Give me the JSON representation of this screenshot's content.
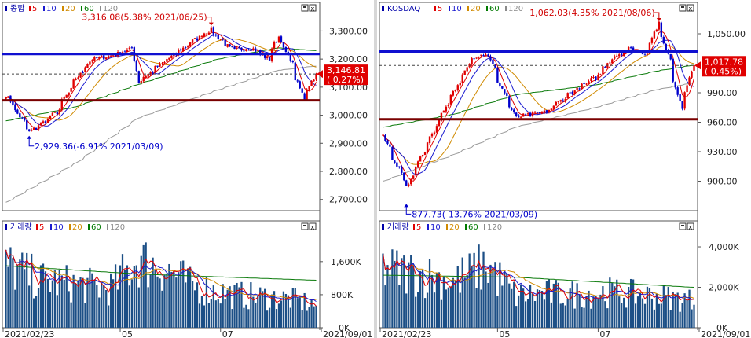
{
  "chart_data": [
    {
      "type": "candlestick",
      "panel": "price",
      "legend": {
        "name": "종합",
        "ma": [
          {
            "label": "5",
            "color": "#e00000"
          },
          {
            "label": "10",
            "color": "#1a1ad0"
          },
          {
            "label": "20",
            "color": "#d08a00"
          },
          {
            "label": "60",
            "color": "#007a00"
          },
          {
            "label": "120",
            "color": "#8a8a8a"
          }
        ]
      },
      "y_ticks": [
        "3,300.00",
        "3,200.00",
        "3,100.00",
        "3,000.00",
        "2,900.00",
        "2,800.00",
        "2,700.00"
      ],
      "ylim": [
        2660,
        3360
      ],
      "current": {
        "value_label": "3,146.81",
        "change_label": "( 0.27%)",
        "value": 3146.81
      },
      "annotations": [
        {
          "text": "3,316.08(5.38% 2021/06/25)",
          "value": 3316.08,
          "type": "high"
        },
        {
          "text": "2,929.36(-6.91% 2021/03/09)",
          "value": 2929.36,
          "type": "low"
        }
      ],
      "h_lines": [
        {
          "value": 3218,
          "color": "#1010d0"
        },
        {
          "value": 3053,
          "color": "#7a0000"
        }
      ],
      "dashed_line": 3146.81,
      "key_points": [
        [
          "2021/02/23",
          3070
        ],
        [
          "2021/03/09",
          2940
        ],
        [
          "2021/03/25",
          3010
        ],
        [
          "2021/04/06",
          3130
        ],
        [
          "2021/04/15",
          3200
        ],
        [
          "2021/04/26",
          3210
        ],
        [
          "2021/05/10",
          3240
        ],
        [
          "2021/05/13",
          3120
        ],
        [
          "2021/05/31",
          3200
        ],
        [
          "2021/06/15",
          3265
        ],
        [
          "2021/06/25",
          3305
        ],
        [
          "2021/07/09",
          3230
        ],
        [
          "2021/07/20",
          3240
        ],
        [
          "2021/07/30",
          3200
        ],
        [
          "2021/08/05",
          3280
        ],
        [
          "2021/08/12",
          3200
        ],
        [
          "2021/08/20",
          3060
        ],
        [
          "2021/08/27",
          3146
        ]
      ],
      "ma_lines": {
        "ma60": [
          [
            "2021/02/23",
            2980
          ],
          [
            "2021/04/06",
            3030
          ],
          [
            "2021/05/13",
            3110
          ],
          [
            "2021/06/30",
            3200
          ],
          [
            "2021/08/05",
            3240
          ],
          [
            "2021/08/27",
            3230
          ]
        ],
        "ma120": [
          [
            "2021/02/23",
            2690
          ],
          [
            "2021/04/06",
            2830
          ],
          [
            "2021/05/13",
            2990
          ],
          [
            "2021/06/30",
            3090
          ],
          [
            "2021/08/05",
            3160
          ],
          [
            "2021/08/27",
            3175
          ]
        ]
      }
    },
    {
      "type": "bar",
      "panel": "volume",
      "legend": {
        "name": "거래량",
        "ma": [
          {
            "label": "5",
            "color": "#e00000"
          },
          {
            "label": "10",
            "color": "#1a1ad0"
          },
          {
            "label": "20",
            "color": "#d08a00"
          },
          {
            "label": "60",
            "color": "#007a00"
          },
          {
            "label": "120",
            "color": "#8a8a8a"
          }
        ]
      },
      "y_ticks": [
        "1,600K",
        "800K",
        "0K"
      ],
      "ylim": [
        0,
        2300
      ],
      "level_points": [
        [
          "2021/02/23",
          1500
        ],
        [
          "2021/03/15",
          1150
        ],
        [
          "2021/04/06",
          1050
        ],
        [
          "2021/04/26",
          950
        ],
        [
          "2021/05/13",
          1650
        ],
        [
          "2021/05/31",
          1400
        ],
        [
          "2021/06/15",
          1000
        ],
        [
          "2021/07/09",
          800
        ],
        [
          "2021/08/12",
          700
        ],
        [
          "2021/08/27",
          550
        ]
      ],
      "ma_lines": {
        "ma60": [
          [
            "2021/02/23",
            1500
          ],
          [
            "2021/05/13",
            1300
          ],
          [
            "2021/08/27",
            1150
          ]
        ]
      },
      "x_labels": [
        "2021/02/23",
        "05",
        "07",
        "2021/09/01"
      ]
    },
    {
      "type": "candlestick",
      "panel": "price",
      "legend": {
        "name": "KOSDAQ",
        "ma": [
          {
            "label": "5",
            "color": "#e00000"
          },
          {
            "label": "10",
            "color": "#1a1ad0"
          },
          {
            "label": "20",
            "color": "#d08a00"
          },
          {
            "label": "60",
            "color": "#007a00"
          },
          {
            "label": "120",
            "color": "#8a8a8a"
          }
        ]
      },
      "y_ticks": [
        "1,050.00",
        "1,020.00",
        "990.00",
        "960.00",
        "930.00",
        "900.00"
      ],
      "ylim": [
        870,
        1070
      ],
      "current": {
        "value_label": "1,017.78",
        "change_label": "( 0.45%)",
        "value": 1017.78
      },
      "annotations": [
        {
          "text": "1,062.03(4.35% 2021/08/06)",
          "value": 1062.03,
          "type": "high"
        },
        {
          "text": "877.73(-13.76% 2021/03/09)",
          "value": 877.73,
          "type": "low"
        }
      ],
      "h_lines": [
        {
          "value": 1032,
          "color": "#1010d0"
        },
        {
          "value": 963,
          "color": "#7a0000"
        }
      ],
      "dashed_line": 1017.78,
      "key_points": [
        [
          "2021/02/23",
          945
        ],
        [
          "2021/03/09",
          895
        ],
        [
          "2021/03/23",
          945
        ],
        [
          "2021/04/06",
          990
        ],
        [
          "2021/04/16",
          1025
        ],
        [
          "2021/04/26",
          1030
        ],
        [
          "2021/05/06",
          990
        ],
        [
          "2021/05/13",
          965
        ],
        [
          "2021/05/31",
          970
        ],
        [
          "2021/06/15",
          990
        ],
        [
          "2021/06/30",
          1005
        ],
        [
          "2021/07/09",
          1025
        ],
        [
          "2021/07/20",
          1035
        ],
        [
          "2021/07/30",
          1030
        ],
        [
          "2021/08/06",
          1060
        ],
        [
          "2021/08/12",
          1030
        ],
        [
          "2021/08/20",
          975
        ],
        [
          "2021/08/27",
          1017
        ]
      ],
      "ma_lines": {
        "ma60": [
          [
            "2021/02/23",
            955
          ],
          [
            "2021/04/06",
            968
          ],
          [
            "2021/05/13",
            988
          ],
          [
            "2021/06/30",
            998
          ],
          [
            "2021/08/05",
            1012
          ],
          [
            "2021/08/27",
            1018
          ]
        ],
        "ma120": [
          [
            "2021/02/23",
            900
          ],
          [
            "2021/04/06",
            927
          ],
          [
            "2021/05/13",
            955
          ],
          [
            "2021/06/30",
            975
          ],
          [
            "2021/08/05",
            993
          ],
          [
            "2021/08/27",
            1000
          ]
        ]
      }
    },
    {
      "type": "bar",
      "panel": "volume",
      "legend": {
        "name": "거래량",
        "ma": [
          {
            "label": "5",
            "color": "#e00000"
          },
          {
            "label": "10",
            "color": "#1a1ad0"
          },
          {
            "label": "20",
            "color": "#d08a00"
          },
          {
            "label": "60",
            "color": "#007a00"
          },
          {
            "label": "120",
            "color": "#8a8a8a"
          }
        ]
      },
      "y_ticks": [
        "4,000K",
        "2,000K",
        "0K"
      ],
      "ylim": [
        0,
        4700
      ],
      "level_points": [
        [
          "2021/02/23",
          2900
        ],
        [
          "2021/03/15",
          2700
        ],
        [
          "2021/04/06",
          2300
        ],
        [
          "2021/04/26",
          3100
        ],
        [
          "2021/05/13",
          1600
        ],
        [
          "2021/05/31",
          1700
        ],
        [
          "2021/06/15",
          1650
        ],
        [
          "2021/07/09",
          1750
        ],
        [
          "2021/08/12",
          1500
        ],
        [
          "2021/08/27",
          1350
        ]
      ],
      "ma_lines": {
        "ma60": [
          [
            "2021/02/23",
            2600
          ],
          [
            "2021/05/13",
            2500
          ],
          [
            "2021/08/27",
            2000
          ]
        ]
      },
      "x_labels": [
        "2021/02/23",
        "05",
        "07",
        "2021/09/01"
      ]
    }
  ]
}
